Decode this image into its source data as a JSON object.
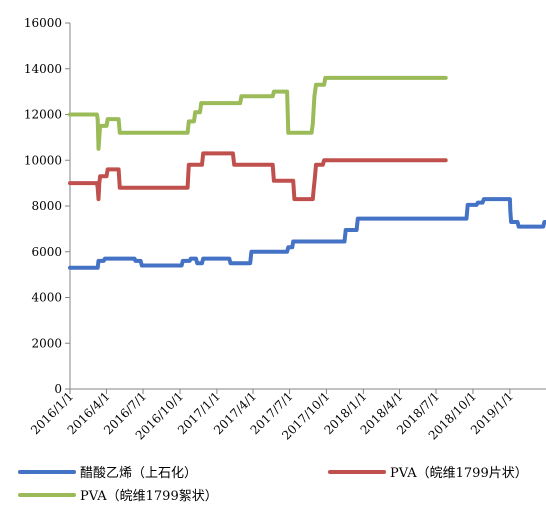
{
  "chart_data": {
    "type": "line",
    "title": "",
    "xlabel": "",
    "ylabel": "",
    "ylim": [
      0,
      16000
    ],
    "yticks": [
      0,
      2000,
      4000,
      6000,
      8000,
      10000,
      12000,
      14000,
      16000
    ],
    "xlim": [
      "2016-01-01",
      "2019-04-01"
    ],
    "xticks": [
      "2016/1/1",
      "2016/4/1",
      "2016/7/1",
      "2016/10/1",
      "2017/1/1",
      "2017/4/1",
      "2017/7/1",
      "2017/10/1",
      "2018/1/1",
      "2018/4/1",
      "2018/7/1",
      "2018/10/1",
      "2019/1/1"
    ],
    "grid": false,
    "legend_position": "bottom",
    "series": [
      {
        "name": "醋酸乙烯（上石化）",
        "color": "#4472c4",
        "points": [
          [
            "2016-01-01",
            5300
          ],
          [
            "2016-03-10",
            5300
          ],
          [
            "2016-03-12",
            5600
          ],
          [
            "2016-03-25",
            5600
          ],
          [
            "2016-03-28",
            5700
          ],
          [
            "2016-06-10",
            5700
          ],
          [
            "2016-06-12",
            5600
          ],
          [
            "2016-06-25",
            5600
          ],
          [
            "2016-06-28",
            5400
          ],
          [
            "2016-10-05",
            5400
          ],
          [
            "2016-10-08",
            5600
          ],
          [
            "2016-10-25",
            5600
          ],
          [
            "2016-10-28",
            5700
          ],
          [
            "2016-11-10",
            5700
          ],
          [
            "2016-11-13",
            5500
          ],
          [
            "2016-11-25",
            5500
          ],
          [
            "2016-11-28",
            5700
          ],
          [
            "2017-02-01",
            5700
          ],
          [
            "2017-02-04",
            5500
          ],
          [
            "2017-03-25",
            5500
          ],
          [
            "2017-03-28",
            6000
          ],
          [
            "2017-06-25",
            6000
          ],
          [
            "2017-06-28",
            6200
          ],
          [
            "2017-07-08",
            6200
          ],
          [
            "2017-07-10",
            6450
          ],
          [
            "2017-11-15",
            6450
          ],
          [
            "2017-11-18",
            6950
          ],
          [
            "2017-12-15",
            6950
          ],
          [
            "2017-12-18",
            7450
          ],
          [
            "2018-09-15",
            7450
          ],
          [
            "2018-09-18",
            8050
          ],
          [
            "2018-10-10",
            8050
          ],
          [
            "2018-10-13",
            8150
          ],
          [
            "2018-10-25",
            8150
          ],
          [
            "2018-10-28",
            8300
          ],
          [
            "2019-01-01",
            8300
          ],
          [
            "2019-01-02",
            7800
          ],
          [
            "2019-01-04",
            7300
          ],
          [
            "2019-01-20",
            7300
          ],
          [
            "2019-01-23",
            7100
          ],
          [
            "2019-03-25",
            7100
          ],
          [
            "2019-03-28",
            7300
          ],
          [
            "2019-04-01",
            7300
          ]
        ]
      },
      {
        "name": "PVA（皖维1799片状）",
        "color": "#c0504d",
        "points": [
          [
            "2016-01-01",
            9000
          ],
          [
            "2016-03-08",
            9000
          ],
          [
            "2016-03-10",
            8800
          ],
          [
            "2016-03-12",
            8300
          ],
          [
            "2016-03-14",
            9000
          ],
          [
            "2016-03-16",
            9300
          ],
          [
            "2016-04-01",
            9300
          ],
          [
            "2016-04-04",
            9600
          ],
          [
            "2016-05-01",
            9600
          ],
          [
            "2016-05-04",
            8800
          ],
          [
            "2016-10-20",
            8800
          ],
          [
            "2016-10-23",
            9800
          ],
          [
            "2016-11-25",
            9800
          ],
          [
            "2016-11-28",
            10300
          ],
          [
            "2017-02-10",
            10300
          ],
          [
            "2017-02-13",
            9800
          ],
          [
            "2017-05-20",
            9800
          ],
          [
            "2017-05-23",
            9100
          ],
          [
            "2017-07-10",
            9100
          ],
          [
            "2017-07-13",
            8300
          ],
          [
            "2017-08-28",
            8300
          ],
          [
            "2017-08-30",
            8700
          ],
          [
            "2017-09-02",
            9200
          ],
          [
            "2017-09-05",
            9800
          ],
          [
            "2017-09-22",
            9800
          ],
          [
            "2017-09-25",
            10000
          ],
          [
            "2018-07-25",
            10000
          ]
        ]
      },
      {
        "name": "PVA（皖维1799絮状）",
        "color": "#9bbb59",
        "points": [
          [
            "2016-01-01",
            12000
          ],
          [
            "2016-03-08",
            12000
          ],
          [
            "2016-03-10",
            11800
          ],
          [
            "2016-03-12",
            10500
          ],
          [
            "2016-03-14",
            11000
          ],
          [
            "2016-03-16",
            11500
          ],
          [
            "2016-04-01",
            11500
          ],
          [
            "2016-04-04",
            11800
          ],
          [
            "2016-05-01",
            11800
          ],
          [
            "2016-05-04",
            11200
          ],
          [
            "2016-10-20",
            11200
          ],
          [
            "2016-10-23",
            11700
          ],
          [
            "2016-11-05",
            11700
          ],
          [
            "2016-11-08",
            12100
          ],
          [
            "2016-11-20",
            12100
          ],
          [
            "2016-11-23",
            12500
          ],
          [
            "2017-02-28",
            12500
          ],
          [
            "2017-03-03",
            12800
          ],
          [
            "2017-05-20",
            12800
          ],
          [
            "2017-05-23",
            13000
          ],
          [
            "2017-06-25",
            13000
          ],
          [
            "2017-06-28",
            11200
          ],
          [
            "2017-08-25",
            11200
          ],
          [
            "2017-08-28",
            11600
          ],
          [
            "2017-09-01",
            12800
          ],
          [
            "2017-09-05",
            13300
          ],
          [
            "2017-09-25",
            13300
          ],
          [
            "2017-09-28",
            13600
          ],
          [
            "2018-07-25",
            13600
          ]
        ]
      }
    ]
  }
}
